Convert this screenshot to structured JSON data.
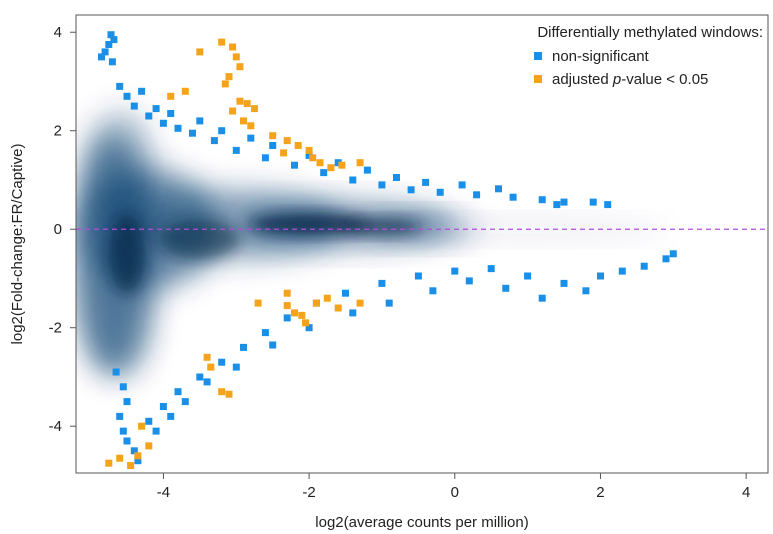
{
  "chart_data": {
    "type": "scatter",
    "title": "",
    "xlabel": "log2(average counts per million)",
    "ylabel": "log2(Fold-change:FR/Captive)",
    "xlim": [
      -5.2,
      4.3
    ],
    "ylim": [
      -4.95,
      4.35
    ],
    "x_ticks": [
      -4,
      -2,
      0,
      2,
      4
    ],
    "y_ticks": [
      -4,
      -2,
      0,
      2,
      4
    ],
    "x_tick_labels": [
      "-4",
      "-2",
      "0",
      "2",
      "4"
    ],
    "y_tick_labels": [
      "-4",
      "-2",
      "0",
      "2",
      "4"
    ],
    "reference_line": {
      "y": 0,
      "style": "dashed",
      "color": "#b44be0"
    },
    "legend": {
      "title": "Differentially methylated windows:",
      "placement": "top-right",
      "entries": [
        {
          "label": "non-significant",
          "color": "#1a8fe8"
        },
        {
          "label_prefix": "adjusted ",
          "label_italic": "p",
          "label_suffix": "-value < 0.05",
          "color": "#f5a31a"
        }
      ]
    },
    "density_background": {
      "color": "#0a3a6b",
      "description_range_x": [
        -5.0,
        0.0
      ]
    },
    "series": [
      {
        "name": "non-significant",
        "color": "#1a8fe8",
        "points": [
          [
            -4.72,
            3.95
          ],
          [
            -4.68,
            3.85
          ],
          [
            -4.75,
            3.75
          ],
          [
            -4.8,
            3.6
          ],
          [
            -4.85,
            3.5
          ],
          [
            -4.7,
            3.4
          ],
          [
            -4.6,
            2.9
          ],
          [
            -4.5,
            2.7
          ],
          [
            -4.4,
            2.5
          ],
          [
            -4.2,
            2.3
          ],
          [
            -4.0,
            2.15
          ],
          [
            -3.8,
            2.05
          ],
          [
            -3.6,
            1.95
          ],
          [
            -3.3,
            1.8
          ],
          [
            -3.0,
            1.6
          ],
          [
            -2.6,
            1.45
          ],
          [
            -2.2,
            1.3
          ],
          [
            -1.8,
            1.15
          ],
          [
            -1.4,
            1.0
          ],
          [
            -1.0,
            0.9
          ],
          [
            -0.6,
            0.8
          ],
          [
            -0.2,
            0.75
          ],
          [
            0.3,
            0.7
          ],
          [
            0.8,
            0.65
          ],
          [
            1.2,
            0.6
          ],
          [
            1.5,
            0.55
          ],
          [
            1.4,
            0.5
          ],
          [
            1.9,
            0.55
          ],
          [
            2.1,
            0.5
          ],
          [
            -4.3,
            2.8
          ],
          [
            -4.1,
            2.45
          ],
          [
            -3.9,
            2.35
          ],
          [
            -3.5,
            2.2
          ],
          [
            -3.2,
            2.0
          ],
          [
            -2.8,
            1.85
          ],
          [
            -2.5,
            1.7
          ],
          [
            -2.0,
            1.5
          ],
          [
            -1.6,
            1.35
          ],
          [
            -1.2,
            1.2
          ],
          [
            -0.8,
            1.05
          ],
          [
            -0.4,
            0.95
          ],
          [
            0.1,
            0.9
          ],
          [
            0.6,
            0.82
          ],
          [
            -4.65,
            -2.9
          ],
          [
            -4.55,
            -3.2
          ],
          [
            -4.5,
            -3.5
          ],
          [
            -4.6,
            -3.8
          ],
          [
            -4.55,
            -4.1
          ],
          [
            -4.5,
            -4.3
          ],
          [
            -4.4,
            -4.5
          ],
          [
            -4.35,
            -4.7
          ],
          [
            -4.2,
            -3.9
          ],
          [
            -4.0,
            -3.6
          ],
          [
            -3.8,
            -3.3
          ],
          [
            -3.5,
            -3.0
          ],
          [
            -3.2,
            -2.7
          ],
          [
            -2.9,
            -2.4
          ],
          [
            -2.6,
            -2.1
          ],
          [
            -2.3,
            -1.8
          ],
          [
            -1.9,
            -1.5
          ],
          [
            -1.5,
            -1.3
          ],
          [
            -1.0,
            -1.1
          ],
          [
            -0.5,
            -0.95
          ],
          [
            0.0,
            -0.85
          ],
          [
            0.5,
            -0.8
          ],
          [
            1.0,
            -0.95
          ],
          [
            1.5,
            -1.1
          ],
          [
            2.0,
            -0.95
          ],
          [
            2.3,
            -0.85
          ],
          [
            2.6,
            -0.75
          ],
          [
            2.9,
            -0.6
          ],
          [
            3.0,
            -0.5
          ],
          [
            1.8,
            -1.25
          ],
          [
            1.2,
            -1.4
          ],
          [
            0.7,
            -1.2
          ],
          [
            0.2,
            -1.05
          ],
          [
            -0.3,
            -1.25
          ],
          [
            -0.9,
            -1.5
          ],
          [
            -1.4,
            -1.7
          ],
          [
            -2.0,
            -2.0
          ],
          [
            -2.5,
            -2.35
          ],
          [
            -3.0,
            -2.8
          ],
          [
            -3.4,
            -3.1
          ],
          [
            -3.7,
            -3.5
          ],
          [
            -3.9,
            -3.8
          ],
          [
            -4.1,
            -4.1
          ]
        ]
      },
      {
        "name": "adjusted p-value < 0.05",
        "color": "#f5a31a",
        "points": [
          [
            -3.5,
            3.6
          ],
          [
            -3.2,
            3.8
          ],
          [
            -3.05,
            3.7
          ],
          [
            -3.0,
            3.5
          ],
          [
            -2.95,
            3.3
          ],
          [
            -3.1,
            3.1
          ],
          [
            -3.15,
            2.95
          ],
          [
            -3.7,
            2.8
          ],
          [
            -3.9,
            2.7
          ],
          [
            -2.95,
            2.6
          ],
          [
            -2.85,
            2.55
          ],
          [
            -2.75,
            2.45
          ],
          [
            -3.05,
            2.4
          ],
          [
            -2.9,
            2.2
          ],
          [
            -2.8,
            2.1
          ],
          [
            -2.5,
            1.9
          ],
          [
            -2.3,
            1.8
          ],
          [
            -2.15,
            1.7
          ],
          [
            -2.0,
            1.6
          ],
          [
            -2.35,
            1.55
          ],
          [
            -1.95,
            1.45
          ],
          [
            -1.85,
            1.35
          ],
          [
            -1.7,
            1.25
          ],
          [
            -1.55,
            1.3
          ],
          [
            -1.3,
            1.35
          ],
          [
            -4.75,
            -4.75
          ],
          [
            -4.6,
            -4.65
          ],
          [
            -4.45,
            -4.8
          ],
          [
            -4.35,
            -4.6
          ],
          [
            -4.2,
            -4.4
          ],
          [
            -4.3,
            -4.0
          ],
          [
            -3.4,
            -2.6
          ],
          [
            -3.35,
            -2.8
          ],
          [
            -3.2,
            -3.3
          ],
          [
            -3.1,
            -3.35
          ],
          [
            -2.7,
            -1.5
          ],
          [
            -2.3,
            -1.55
          ],
          [
            -2.2,
            -1.7
          ],
          [
            -2.1,
            -1.75
          ],
          [
            -1.9,
            -1.5
          ],
          [
            -1.75,
            -1.4
          ],
          [
            -2.05,
            -1.9
          ],
          [
            -2.3,
            -1.3
          ],
          [
            -1.6,
            -1.6
          ],
          [
            -1.3,
            -1.5
          ]
        ]
      }
    ]
  }
}
